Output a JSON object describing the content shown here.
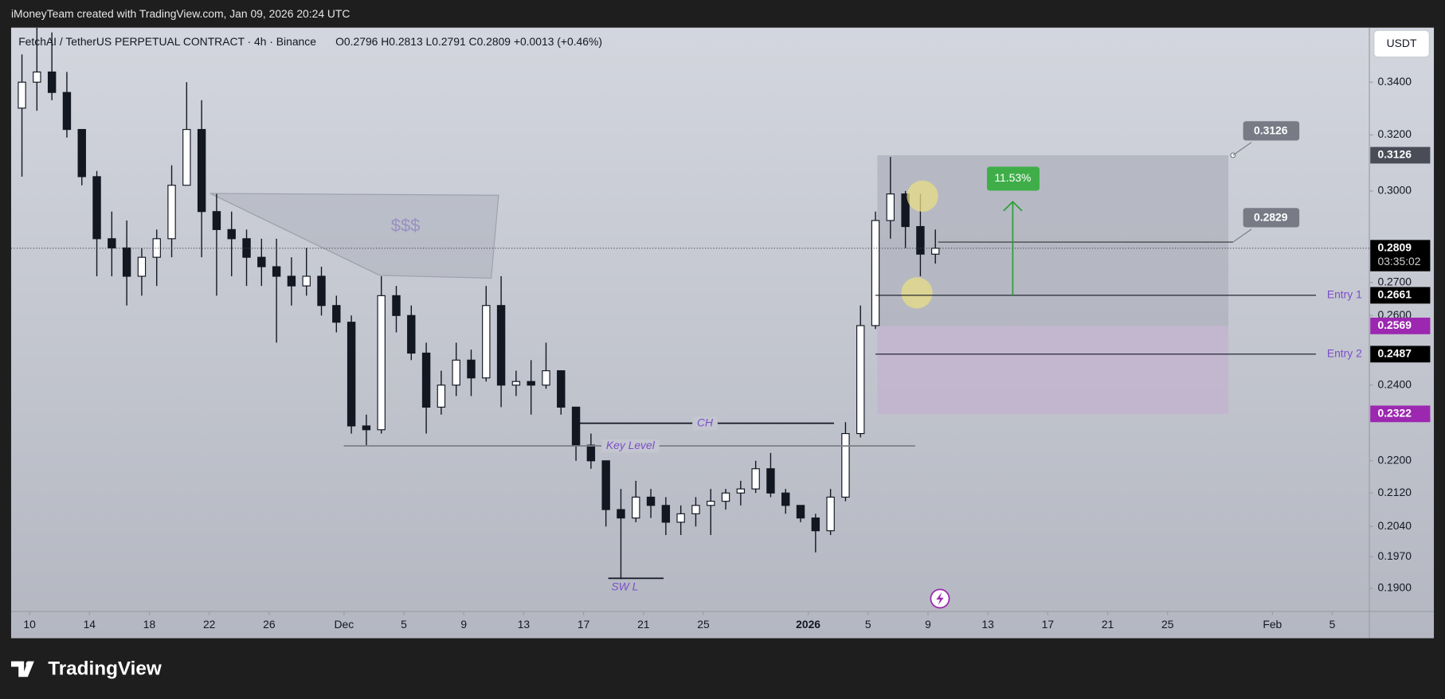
{
  "page": {
    "caption": "iMoneyTeam created with TradingView.com, Jan 09, 2026 20:24 UTC",
    "logo": "TradingView"
  },
  "chart_data": {
    "type": "candlestick",
    "title": "FetchAI / TetherUS PERPETUAL CONTRACT · 4h · Binance",
    "quote": "O0.2796 H0.2813 L0.2791 C0.2809 +0.0013 (+0.46%)",
    "currency": "USDT",
    "log_scale": true,
    "color": "#131722",
    "x": [
      "2025-11-09",
      "2025-11-10",
      "2025-11-11",
      "2025-11-12",
      "2025-11-13",
      "2025-11-14",
      "2025-11-15",
      "2025-11-16",
      "2025-11-17",
      "2025-11-18",
      "2025-11-19",
      "2025-11-20",
      "2025-11-21",
      "2025-11-22",
      "2025-11-23",
      "2025-11-24",
      "2025-11-25",
      "2025-11-26",
      "2025-11-27",
      "2025-11-28",
      "2025-11-29",
      "2025-11-30",
      "2025-12-01",
      "2025-12-02",
      "2025-12-03",
      "2025-12-04",
      "2025-12-05",
      "2025-12-06",
      "2025-12-07",
      "2025-12-08",
      "2025-12-09",
      "2025-12-10",
      "2025-12-11",
      "2025-12-12",
      "2025-12-13",
      "2025-12-14",
      "2025-12-15",
      "2025-12-16",
      "2025-12-17",
      "2025-12-18",
      "2025-12-19",
      "2025-12-20",
      "2025-12-21",
      "2025-12-22",
      "2025-12-23",
      "2025-12-24",
      "2025-12-25",
      "2025-12-26",
      "2025-12-27",
      "2025-12-28",
      "2025-12-29",
      "2025-12-30",
      "2025-12-31",
      "2026-01-01",
      "2026-01-02",
      "2026-01-03",
      "2026-01-04",
      "2026-01-05",
      "2026-01-06",
      "2026-01-07",
      "2026-01-08",
      "2026-01-09"
    ],
    "open": [
      0.33,
      0.34,
      0.344,
      0.336,
      0.322,
      0.305,
      0.284,
      0.281,
      0.272,
      0.278,
      0.284,
      0.302,
      0.322,
      0.293,
      0.287,
      0.284,
      0.278,
      0.275,
      0.272,
      0.269,
      0.272,
      0.263,
      0.258,
      0.229,
      0.228,
      0.266,
      0.26,
      0.249,
      0.234,
      0.24,
      0.247,
      0.242,
      0.263,
      0.24,
      0.241,
      0.24,
      0.244,
      0.234,
      0.224,
      0.22,
      0.208,
      0.206,
      0.211,
      0.209,
      0.205,
      0.207,
      0.209,
      0.21,
      0.212,
      0.213,
      0.218,
      0.212,
      0.209,
      0.206,
      0.203,
      0.211,
      0.227,
      0.257,
      0.29,
      0.299,
      0.288,
      0.279
    ],
    "high": [
      0.351,
      0.362,
      0.36,
      0.344,
      0.322,
      0.307,
      0.293,
      0.29,
      0.281,
      0.287,
      0.309,
      0.34,
      0.333,
      0.299,
      0.293,
      0.287,
      0.284,
      0.284,
      0.278,
      0.281,
      0.275,
      0.266,
      0.26,
      0.232,
      0.272,
      0.269,
      0.263,
      0.252,
      0.244,
      0.252,
      0.25,
      0.269,
      0.272,
      0.244,
      0.247,
      0.252,
      0.244,
      0.234,
      0.227,
      0.22,
      0.213,
      0.215,
      0.213,
      0.211,
      0.209,
      0.211,
      0.213,
      0.213,
      0.215,
      0.22,
      0.222,
      0.213,
      0.209,
      0.207,
      0.213,
      0.23,
      0.263,
      0.293,
      0.312,
      0.3,
      0.299,
      0.287
    ],
    "low": [
      0.305,
      0.329,
      0.333,
      0.319,
      0.302,
      0.272,
      0.272,
      0.263,
      0.266,
      0.269,
      0.278,
      0.302,
      0.278,
      0.266,
      0.272,
      0.269,
      0.269,
      0.252,
      0.263,
      0.266,
      0.26,
      0.255,
      0.227,
      0.224,
      0.227,
      0.255,
      0.247,
      0.227,
      0.232,
      0.237,
      0.237,
      0.241,
      0.234,
      0.237,
      0.232,
      0.239,
      0.232,
      0.22,
      0.218,
      0.204,
      0.192,
      0.205,
      0.206,
      0.202,
      0.202,
      0.204,
      0.202,
      0.208,
      0.209,
      0.212,
      0.211,
      0.207,
      0.205,
      0.198,
      0.202,
      0.21,
      0.226,
      0.256,
      0.284,
      0.281,
      0.272,
      0.276
    ],
    "close": [
      0.34,
      0.344,
      0.336,
      0.322,
      0.305,
      0.284,
      0.281,
      0.272,
      0.278,
      0.284,
      0.302,
      0.322,
      0.293,
      0.287,
      0.284,
      0.278,
      0.275,
      0.272,
      0.269,
      0.272,
      0.263,
      0.258,
      0.229,
      0.228,
      0.266,
      0.26,
      0.249,
      0.234,
      0.24,
      0.247,
      0.242,
      0.263,
      0.24,
      0.241,
      0.24,
      0.244,
      0.234,
      0.224,
      0.22,
      0.208,
      0.206,
      0.211,
      0.209,
      0.205,
      0.207,
      0.209,
      0.21,
      0.212,
      0.213,
      0.218,
      0.212,
      0.209,
      0.206,
      0.203,
      0.211,
      0.227,
      0.257,
      0.29,
      0.299,
      0.288,
      0.279,
      0.2809
    ],
    "ylim": [
      0.185,
      0.362
    ],
    "yticks": [
      {
        "value": 0.34,
        "label": "0.3400"
      },
      {
        "value": 0.32,
        "label": "0.3200"
      },
      {
        "value": 0.3,
        "label": "0.3000"
      },
      {
        "value": 0.27,
        "label": "0.2700"
      },
      {
        "value": 0.26,
        "label": "0.2600"
      },
      {
        "value": 0.24,
        "label": "0.2400"
      },
      {
        "value": 0.22,
        "label": "0.2200"
      },
      {
        "value": 0.212,
        "label": "0.2120"
      },
      {
        "value": 0.204,
        "label": "0.2040"
      },
      {
        "value": 0.197,
        "label": "0.1970"
      },
      {
        "value": 0.19,
        "label": "0.1900"
      }
    ],
    "xticks": [
      {
        "value": "2025-11-10",
        "label": "10"
      },
      {
        "value": "2025-11-14",
        "label": "14"
      },
      {
        "value": "2025-11-18",
        "label": "18"
      },
      {
        "value": "2025-11-22",
        "label": "22"
      },
      {
        "value": "2025-11-26",
        "label": "26"
      },
      {
        "value": "2025-12-01",
        "label": "Dec"
      },
      {
        "value": "2025-12-05",
        "label": "5"
      },
      {
        "value": "2025-12-09",
        "label": "9"
      },
      {
        "value": "2025-12-13",
        "label": "13"
      },
      {
        "value": "2025-12-17",
        "label": "17"
      },
      {
        "value": "2025-12-21",
        "label": "21"
      },
      {
        "value": "2025-12-25",
        "label": "25"
      },
      {
        "value": "2026-01-01",
        "label": "2026"
      },
      {
        "value": "2026-01-05",
        "label": "5"
      },
      {
        "value": "2026-01-09",
        "label": "9"
      },
      {
        "value": "2026-01-13",
        "label": "13"
      },
      {
        "value": "2026-01-17",
        "label": "17"
      },
      {
        "value": "2026-01-21",
        "label": "21"
      },
      {
        "value": "2026-01-25",
        "label": "25"
      },
      {
        "value": "2026-02-01",
        "label": "Feb"
      },
      {
        "value": "2026-02-05",
        "label": "5"
      }
    ],
    "last_price": {
      "value": 0.2809,
      "countdown": "03:35:02"
    },
    "levels": [
      {
        "name": "Entry 1",
        "value": 0.2661
      },
      {
        "name": "Entry 2",
        "value": 0.2487
      }
    ],
    "target": 0.3126,
    "projection": 0.2829,
    "zone_split": 0.2569,
    "zone_bottom": 0.2322,
    "zone_colors": [
      "#afb2bc",
      "#c3b2cf"
    ],
    "gain": "11.53%",
    "liquidity": "$$$",
    "structure": [
      {
        "text": "CH",
        "value": 0.2297
      },
      {
        "text": "Key Level",
        "value": 0.2238
      },
      {
        "text": "SW L",
        "value": 0.1922
      }
    ]
  }
}
